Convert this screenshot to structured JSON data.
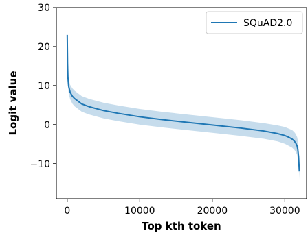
{
  "chart_data": {
    "type": "line",
    "title": "",
    "xlabel": "Top kth token",
    "ylabel": "Logit value",
    "xlim": [
      -1500,
      33000
    ],
    "ylim": [
      -19,
      30
    ],
    "x_ticks": [
      0,
      10000,
      20000,
      30000
    ],
    "y_ticks": [
      30,
      20,
      10,
      0,
      -10
    ],
    "x_tick_labels": [
      "0",
      "10000",
      "20000",
      "30000"
    ],
    "y_tick_labels": [
      "30",
      "20",
      "10",
      "0",
      "−10"
    ],
    "grid": false,
    "legend_position": "top-right",
    "series": [
      {
        "name": "SQuAD2.0",
        "color": "#1f77b4",
        "band_color": "#c6dcec",
        "x": [
          0,
          50,
          100,
          200,
          400,
          700,
          1000,
          2000,
          3000,
          5000,
          7000,
          10000,
          13000,
          16000,
          20000,
          24000,
          27000,
          29000,
          30000,
          30500,
          31000,
          31300,
          31500,
          31700,
          31800,
          31900,
          32000
        ],
        "y": [
          23.0,
          15.5,
          12.0,
          9.8,
          8.3,
          7.3,
          6.7,
          5.3,
          4.6,
          3.6,
          2.9,
          2.0,
          1.3,
          0.7,
          -0.1,
          -0.9,
          -1.6,
          -2.3,
          -2.8,
          -3.2,
          -3.7,
          -4.2,
          -4.7,
          -5.5,
          -6.5,
          -8.2,
          -12.0
        ],
        "upper": [
          23.0,
          17.0,
          14.0,
          11.6,
          10.2,
          9.3,
          8.7,
          7.3,
          6.6,
          5.6,
          4.9,
          4.0,
          3.3,
          2.7,
          1.9,
          1.1,
          0.4,
          -0.2,
          -0.6,
          -1.0,
          -1.4,
          -1.9,
          -2.4,
          -3.2,
          -4.2,
          -6.0,
          -10.0
        ],
        "lower": [
          23.0,
          14.0,
          10.0,
          8.0,
          6.5,
          5.4,
          4.7,
          3.3,
          2.6,
          1.6,
          0.9,
          0.0,
          -0.7,
          -1.3,
          -2.1,
          -2.9,
          -3.6,
          -4.3,
          -4.9,
          -5.4,
          -5.9,
          -6.4,
          -7.0,
          -7.8,
          -8.8,
          -10.4,
          -14.0
        ]
      }
    ]
  }
}
